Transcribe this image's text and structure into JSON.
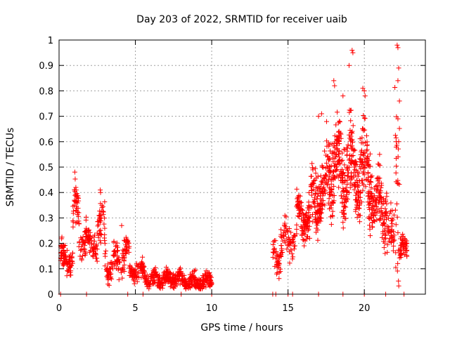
{
  "chart_data": {
    "type": "scatter",
    "title": "Day 203 of 2022, SRMTID for receiver uaib",
    "xlabel": "GPS time / hours",
    "ylabel": "SRMTID / TECUs",
    "xlim": [
      0,
      24
    ],
    "ylim": [
      0,
      1
    ],
    "x_ticks": [
      0,
      5,
      10,
      15,
      20
    ],
    "x_tick_labels": [
      "0",
      "5",
      "10",
      "15",
      "20"
    ],
    "y_ticks": [
      0,
      0.1,
      0.2,
      0.3,
      0.4,
      0.5,
      0.6,
      0.7,
      0.8,
      0.9,
      1
    ],
    "y_tick_labels": [
      "0",
      "0.1",
      "0.2",
      "0.3",
      "0.4",
      "0.5",
      "0.6",
      "0.7",
      "0.8",
      "0.9",
      "1"
    ],
    "grid": true,
    "marker": "+",
    "color": "#ff0000",
    "zero_markers_x": [
      0.1,
      1.8,
      4.5,
      5.5,
      8.0,
      10.0,
      14.0,
      14.2,
      15.0,
      15.3,
      17.0,
      18.6,
      20.0,
      21.4,
      22.6
    ],
    "clusters": [
      {
        "t0": 0.1,
        "t1": 0.9,
        "base": 0.14,
        "spread": 0.05,
        "n": 90
      },
      {
        "t0": 0.9,
        "t1": 1.3,
        "base": 0.32,
        "spread": 0.08,
        "n": 40
      },
      {
        "t0": 1.3,
        "t1": 1.8,
        "base": 0.22,
        "spread": 0.06,
        "n": 40
      },
      {
        "t0": 1.8,
        "t1": 2.5,
        "base": 0.2,
        "spread": 0.05,
        "n": 60
      },
      {
        "t0": 2.5,
        "t1": 3.0,
        "base": 0.25,
        "spread": 0.07,
        "n": 45
      },
      {
        "t0": 3.0,
        "t1": 4.0,
        "base": 0.13,
        "spread": 0.05,
        "n": 80
      },
      {
        "t0": 4.0,
        "t1": 4.6,
        "base": 0.16,
        "spread": 0.05,
        "n": 45
      },
      {
        "t0": 4.6,
        "t1": 5.6,
        "base": 0.09,
        "spread": 0.03,
        "n": 80
      },
      {
        "t0": 5.6,
        "t1": 8.0,
        "base": 0.06,
        "spread": 0.025,
        "n": 220
      },
      {
        "t0": 8.0,
        "t1": 10.0,
        "base": 0.05,
        "spread": 0.025,
        "n": 190
      },
      {
        "t0": 14.0,
        "t1": 14.5,
        "base": 0.15,
        "spread": 0.05,
        "n": 40
      },
      {
        "t0": 14.5,
        "t1": 15.5,
        "base": 0.22,
        "spread": 0.06,
        "n": 70
      },
      {
        "t0": 15.5,
        "t1": 16.5,
        "base": 0.3,
        "spread": 0.07,
        "n": 110
      },
      {
        "t0": 16.5,
        "t1": 17.5,
        "base": 0.38,
        "spread": 0.1,
        "n": 130
      },
      {
        "t0": 17.5,
        "t1": 18.5,
        "base": 0.5,
        "spread": 0.13,
        "n": 150
      },
      {
        "t0": 18.5,
        "t1": 19.5,
        "base": 0.48,
        "spread": 0.13,
        "n": 150
      },
      {
        "t0": 19.5,
        "t1": 20.5,
        "base": 0.48,
        "spread": 0.14,
        "n": 150
      },
      {
        "t0": 20.5,
        "t1": 21.5,
        "base": 0.35,
        "spread": 0.1,
        "n": 120
      },
      {
        "t0": 21.5,
        "t1": 22.0,
        "base": 0.22,
        "spread": 0.07,
        "n": 40
      },
      {
        "t0": 22.0,
        "t1": 22.3,
        "base": 0.55,
        "spread": 0.3,
        "n": 30
      },
      {
        "t0": 22.3,
        "t1": 22.8,
        "base": 0.18,
        "spread": 0.04,
        "n": 50
      }
    ],
    "peaks": [
      {
        "x": 1.1,
        "y": 0.42
      },
      {
        "x": 1.12,
        "y": 0.41
      },
      {
        "x": 2.7,
        "y": 0.41
      },
      {
        "x": 2.72,
        "y": 0.4
      },
      {
        "x": 4.1,
        "y": 0.27
      },
      {
        "x": 17.0,
        "y": 0.7
      },
      {
        "x": 17.2,
        "y": 0.71
      },
      {
        "x": 18.0,
        "y": 0.84
      },
      {
        "x": 18.05,
        "y": 0.82
      },
      {
        "x": 18.6,
        "y": 0.78
      },
      {
        "x": 19.2,
        "y": 0.96
      },
      {
        "x": 19.25,
        "y": 0.95
      },
      {
        "x": 19.0,
        "y": 0.9
      },
      {
        "x": 19.9,
        "y": 0.81
      },
      {
        "x": 20.0,
        "y": 0.8
      },
      {
        "x": 20.05,
        "y": 0.78
      },
      {
        "x": 21.0,
        "y": 0.55
      },
      {
        "x": 22.15,
        "y": 0.98
      },
      {
        "x": 22.2,
        "y": 0.97
      },
      {
        "x": 22.25,
        "y": 0.89
      },
      {
        "x": 22.2,
        "y": 0.84
      },
      {
        "x": 22.3,
        "y": 0.76
      },
      {
        "x": 22.2,
        "y": 0.69
      },
      {
        "x": 22.25,
        "y": 0.6
      }
    ]
  }
}
